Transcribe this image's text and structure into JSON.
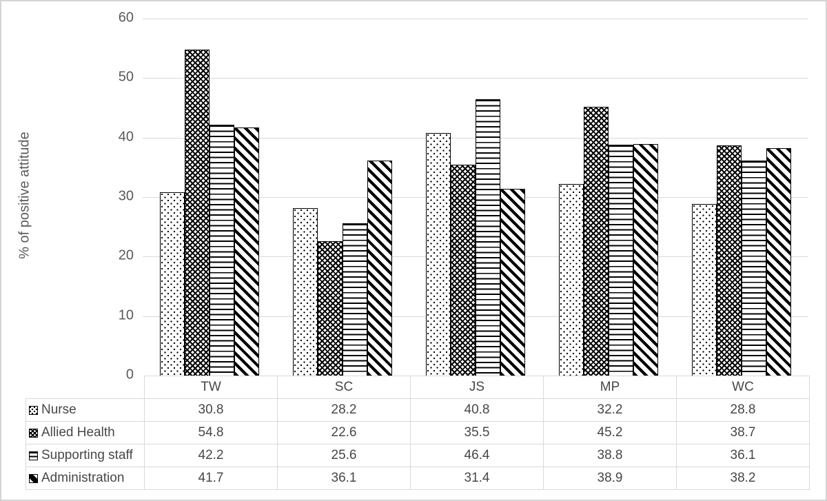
{
  "chart_data": {
    "type": "bar",
    "title": "",
    "ylabel": "% of positive attitude",
    "xlabel": "",
    "ylim": [
      0,
      60
    ],
    "yticks": [
      0,
      10,
      20,
      30,
      40,
      50,
      60
    ],
    "grid": true,
    "legend_position": "table-below-left",
    "categories": [
      "TW",
      "SC",
      "JS",
      "MP",
      "WC"
    ],
    "series": [
      {
        "name": "Nurse",
        "pattern": "light-dots-pattern",
        "values": [
          30.8,
          28.2,
          40.8,
          32.2,
          28.8
        ]
      },
      {
        "name": "Allied Health",
        "pattern": "dense-diamond-pattern",
        "values": [
          54.8,
          22.6,
          35.5,
          45.2,
          38.7
        ]
      },
      {
        "name": "Supporting staff",
        "pattern": "horizontal-lines-pattern",
        "values": [
          42.2,
          25.6,
          46.4,
          38.8,
          36.1
        ]
      },
      {
        "name": "Administration",
        "pattern": "diagonal-stripes-pattern",
        "values": [
          41.7,
          36.1,
          31.4,
          38.9,
          38.2
        ]
      }
    ],
    "colors": {
      "bar_fill": "#ffffff",
      "bar_stroke": "#000000",
      "gridline": "#d9d9d9",
      "axis_text": "#595959",
      "table_text": "#474747",
      "table_border": "#d9d9d9",
      "frame_border": "#d4d4d4"
    }
  }
}
